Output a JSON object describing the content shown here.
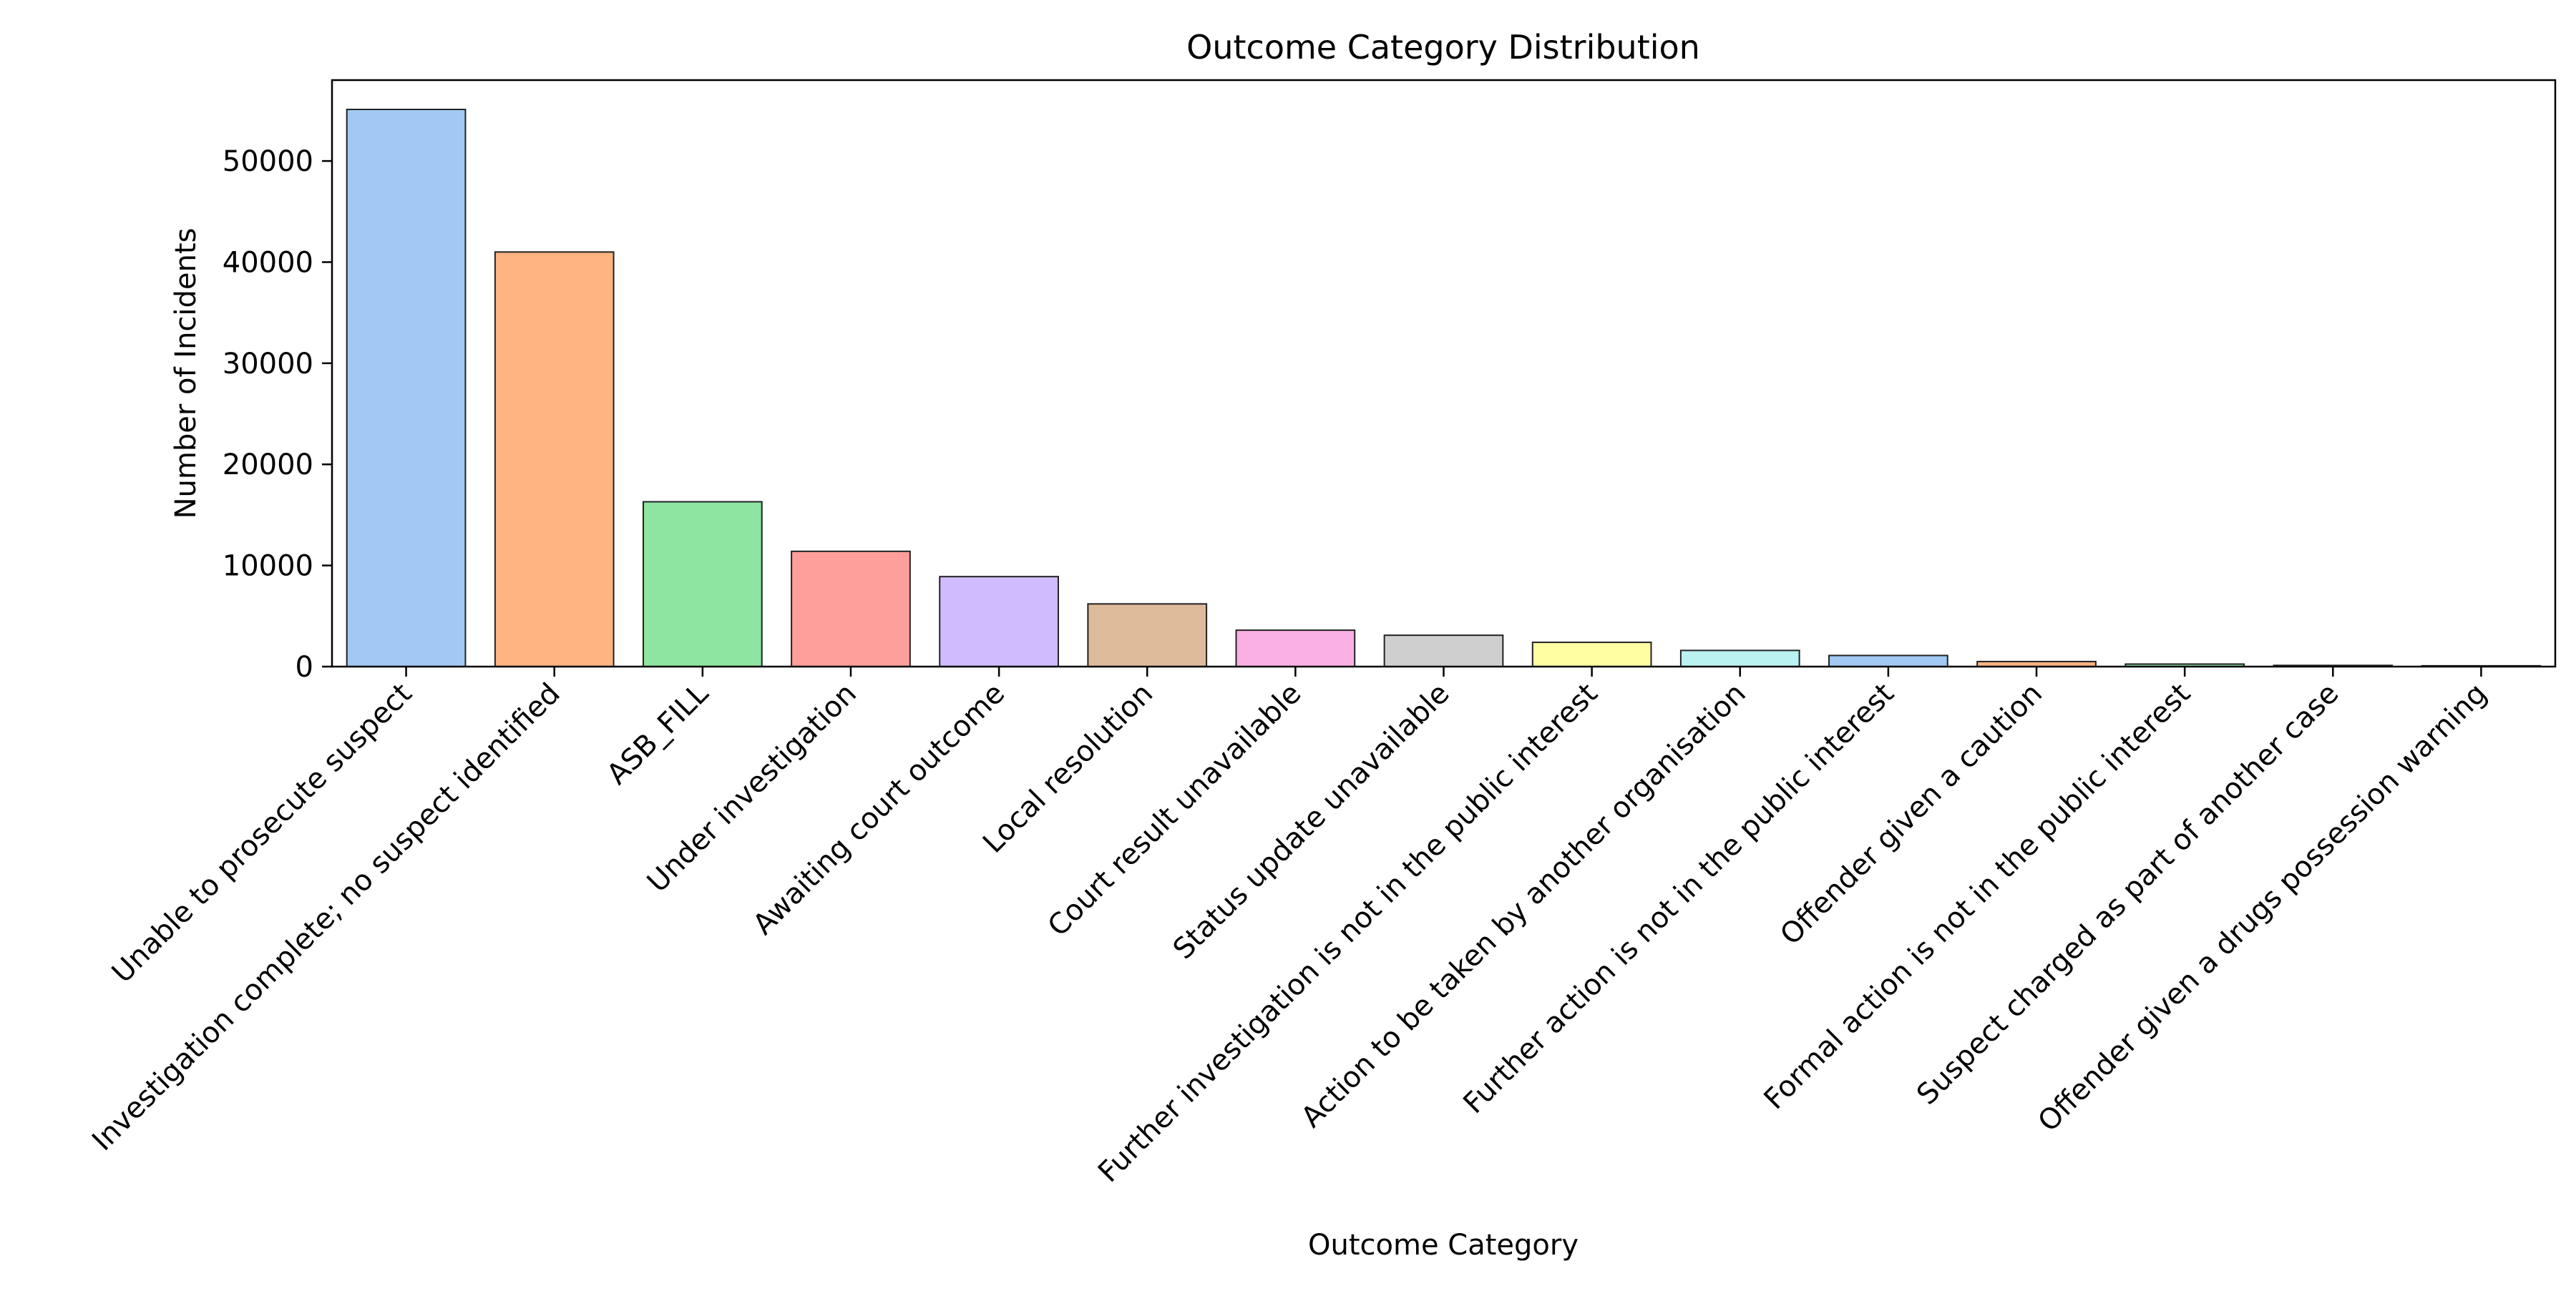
{
  "chart_data": {
    "type": "bar",
    "title": "Outcome Category Distribution",
    "xlabel": "Outcome Category",
    "ylabel": "Number of Incidents",
    "ylim": [
      0,
      58000
    ],
    "yticks": [
      0,
      10000,
      20000,
      30000,
      40000,
      50000
    ],
    "grid": false,
    "legend": "none",
    "categories": [
      "Unable to prosecute suspect",
      "Investigation complete; no suspect identified",
      "ASB_FILL",
      "Under investigation",
      "Awaiting court outcome",
      "Local resolution",
      "Court result unavailable",
      "Status update unavailable",
      "Further investigation is not in the public interest",
      "Action to be taken by another organisation",
      "Further action is not in the public interest",
      "Offender given a caution",
      "Formal action is not in the public interest",
      "Suspect charged as part of another case",
      "Offender given a drugs possession warning"
    ],
    "values": [
      55100,
      41000,
      16300,
      11400,
      8900,
      6200,
      3600,
      3100,
      2400,
      1600,
      1100,
      500,
      250,
      120,
      80
    ],
    "colors": [
      "#a1c9f4",
      "#ffb482",
      "#8de5a1",
      "#ff9f9b",
      "#d0bbff",
      "#debb9b",
      "#fab0e4",
      "#cfcfcf",
      "#fffea3",
      "#b9f2f0",
      "#a1c9f4",
      "#ffb482",
      "#8de5a1",
      "#ff9f9b",
      "#d0bbff"
    ]
  }
}
